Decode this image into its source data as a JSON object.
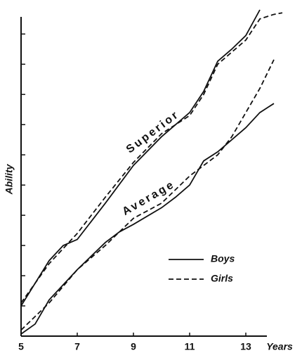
{
  "chart_data": {
    "type": "line",
    "y_label": "Ability",
    "x_label": "Years",
    "xlim": [
      5,
      14.75
    ],
    "xticks": [
      5,
      7,
      9,
      11,
      13
    ],
    "ylim": [
      0,
      10.8
    ],
    "yticks": [
      1,
      2,
      3,
      4,
      5,
      6,
      7,
      8,
      9,
      10
    ],
    "color": "#111111",
    "annotations": [
      "Superior",
      "Average"
    ],
    "series": [
      {
        "name": "Boys",
        "style": "solid",
        "lines": [
          {
            "x": [
              5,
              6,
              6.5,
              7,
              8,
              9,
              10,
              11,
              11.5,
              12,
              12.5,
              13,
              13.5
            ],
            "values": [
              1.0,
              2.5,
              3.0,
              3.2,
              4.4,
              5.65,
              6.6,
              7.4,
              8.1,
              9.1,
              9.5,
              9.95,
              10.8
            ]
          },
          {
            "x": [
              5,
              5.5,
              6,
              7,
              8,
              8.5,
              9,
              10,
              10.5,
              11,
              11.5,
              12,
              13,
              13.5,
              14
            ],
            "values": [
              0.07,
              0.4,
              1.2,
              2.2,
              3.1,
              3.45,
              3.7,
              4.25,
              4.6,
              5.0,
              5.8,
              6.1,
              6.9,
              7.4,
              7.7
            ]
          }
        ]
      },
      {
        "name": "Girls",
        "style": "dashed",
        "lines": [
          {
            "x": [
              5,
              6,
              6.5,
              7,
              8,
              9,
              10,
              11,
              11.5,
              12,
              13,
              13.5,
              14,
              14.3
            ],
            "values": [
              1.1,
              2.4,
              2.9,
              3.4,
              4.6,
              5.75,
              6.7,
              7.3,
              8.0,
              9.0,
              9.8,
              10.5,
              10.65,
              10.7
            ]
          },
          {
            "x": [
              5,
              6,
              7,
              8,
              9,
              10,
              11,
              12,
              12.5,
              13,
              13.5,
              14
            ],
            "values": [
              0.2,
              1.1,
              2.2,
              3.0,
              3.9,
              4.4,
              5.3,
              6.0,
              6.6,
              7.4,
              8.2,
              9.15
            ]
          }
        ]
      }
    ]
  }
}
